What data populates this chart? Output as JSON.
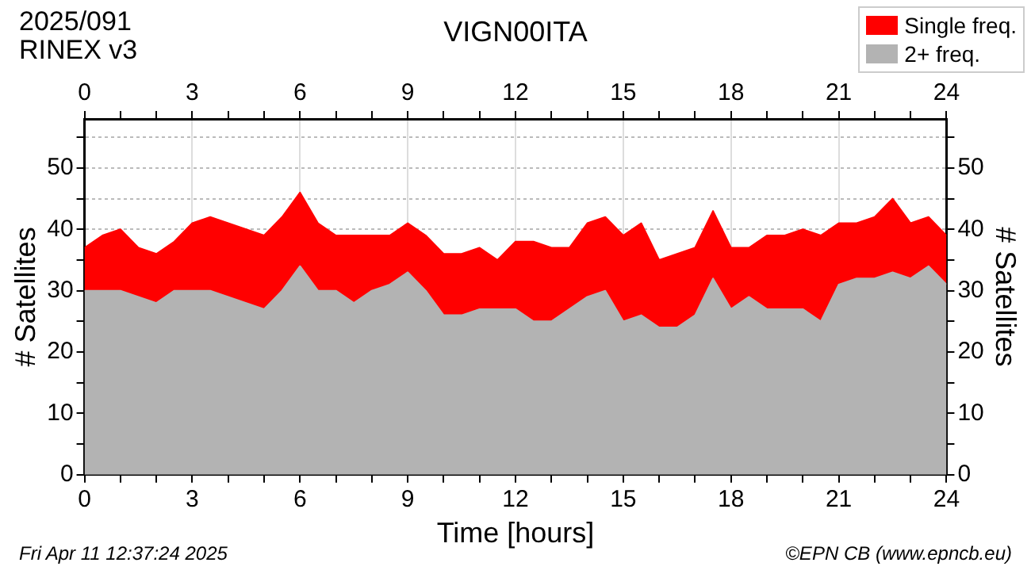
{
  "chart_data": {
    "type": "area",
    "title": "VIGN00ITA",
    "xlabel": "Time [hours]",
    "ylabel": "# Satellites",
    "y2label": "# Satellites",
    "annotations": [
      "2025/091",
      "RINEX v3",
      "Fri Apr 11 12:37:24 2025",
      "©EPN CB (www.epncb.eu)"
    ],
    "x": [
      0,
      0.5,
      1,
      1.5,
      2,
      2.5,
      3,
      3.5,
      4,
      4.5,
      5,
      5.5,
      6,
      6.5,
      7,
      7.5,
      8,
      8.5,
      9,
      9.5,
      10,
      10.5,
      11,
      11.5,
      12,
      12.5,
      13,
      13.5,
      14,
      14.5,
      15,
      15.5,
      16,
      16.5,
      17,
      17.5,
      18,
      18.5,
      19,
      19.5,
      20,
      20.5,
      21,
      21.5,
      22,
      22.5,
      23,
      23.5,
      24
    ],
    "stacked": true,
    "series": [
      {
        "name": "2+ freq.",
        "color": "#b3b3b3",
        "values": [
          30,
          30,
          30,
          29,
          28,
          30,
          30,
          30,
          29,
          28,
          27,
          30,
          34,
          30,
          30,
          28,
          30,
          31,
          33,
          30,
          26,
          26,
          27,
          27,
          27,
          25,
          25,
          27,
          29,
          30,
          25,
          26,
          24,
          24,
          26,
          32,
          27,
          29,
          27,
          27,
          27,
          25,
          31,
          32,
          32,
          33,
          32,
          34,
          31
        ]
      },
      {
        "name": "Single freq.",
        "color": "#ff0000",
        "values": [
          7,
          9,
          10,
          8,
          8,
          8,
          11,
          12,
          12,
          12,
          12,
          12,
          12,
          11,
          9,
          11,
          9,
          8,
          8,
          9,
          10,
          10,
          10,
          8,
          11,
          13,
          12,
          10,
          12,
          12,
          14,
          15,
          11,
          12,
          11,
          11,
          10,
          8,
          12,
          12,
          13,
          14,
          10,
          9,
          10,
          12,
          9,
          8,
          8
        ]
      }
    ],
    "xlim": [
      0,
      24
    ],
    "xticks": [
      0,
      {
        "value": 1,
        "label": null
      },
      {
        "value": 2,
        "label": null
      },
      3,
      {
        "value": 4,
        "label": null
      },
      {
        "value": 5,
        "label": null
      },
      6,
      {
        "value": 7,
        "label": null
      },
      {
        "value": 8,
        "label": null
      },
      9,
      {
        "value": 10,
        "label": null
      },
      {
        "value": 11,
        "label": null
      },
      12,
      {
        "value": 13,
        "label": null
      },
      {
        "value": 14,
        "label": null
      },
      15,
      {
        "value": 16,
        "label": null
      },
      {
        "value": 17,
        "label": null
      },
      18,
      {
        "value": 19,
        "label": null
      },
      {
        "value": 20,
        "label": null
      },
      21,
      {
        "value": 22,
        "label": null
      },
      {
        "value": 23,
        "label": null
      },
      24
    ],
    "x2lim": [
      0,
      24
    ],
    "x2ticks": [
      0,
      {
        "value": 1,
        "label": null
      },
      {
        "value": 2,
        "label": null
      },
      3,
      {
        "value": 4,
        "label": null
      },
      {
        "value": 5,
        "label": null
      },
      6,
      {
        "value": 7,
        "label": null
      },
      {
        "value": 8,
        "label": null
      },
      9,
      {
        "value": 10,
        "label": null
      },
      {
        "value": 11,
        "label": null
      },
      12,
      {
        "value": 13,
        "label": null
      },
      {
        "value": 14,
        "label": null
      },
      15,
      {
        "value": 16,
        "label": null
      },
      {
        "value": 17,
        "label": null
      },
      18,
      {
        "value": 19,
        "label": null
      },
      {
        "value": 20,
        "label": null
      },
      21,
      {
        "value": 22,
        "label": null
      },
      {
        "value": 23,
        "label": null
      },
      24
    ],
    "ylim": [
      0,
      58
    ],
    "yticks": [
      0,
      {
        "value": 5,
        "label": null
      },
      10,
      {
        "value": 15,
        "label": null
      },
      20,
      {
        "value": 25,
        "label": null
      },
      30,
      {
        "value": 35,
        "label": null
      },
      40,
      {
        "value": 45,
        "label": null
      },
      50,
      {
        "value": 55,
        "label": null
      }
    ],
    "y2lim": [
      0,
      58
    ],
    "y2ticks": [
      0,
      {
        "value": 5,
        "label": null
      },
      10,
      {
        "value": 15,
        "label": null
      },
      20,
      {
        "value": 25,
        "label": null
      },
      30,
      {
        "value": 35,
        "label": null
      },
      40,
      {
        "value": 45,
        "label": null
      },
      50,
      {
        "value": 55,
        "label": null
      }
    ],
    "grid": true,
    "legend": "top right"
  }
}
